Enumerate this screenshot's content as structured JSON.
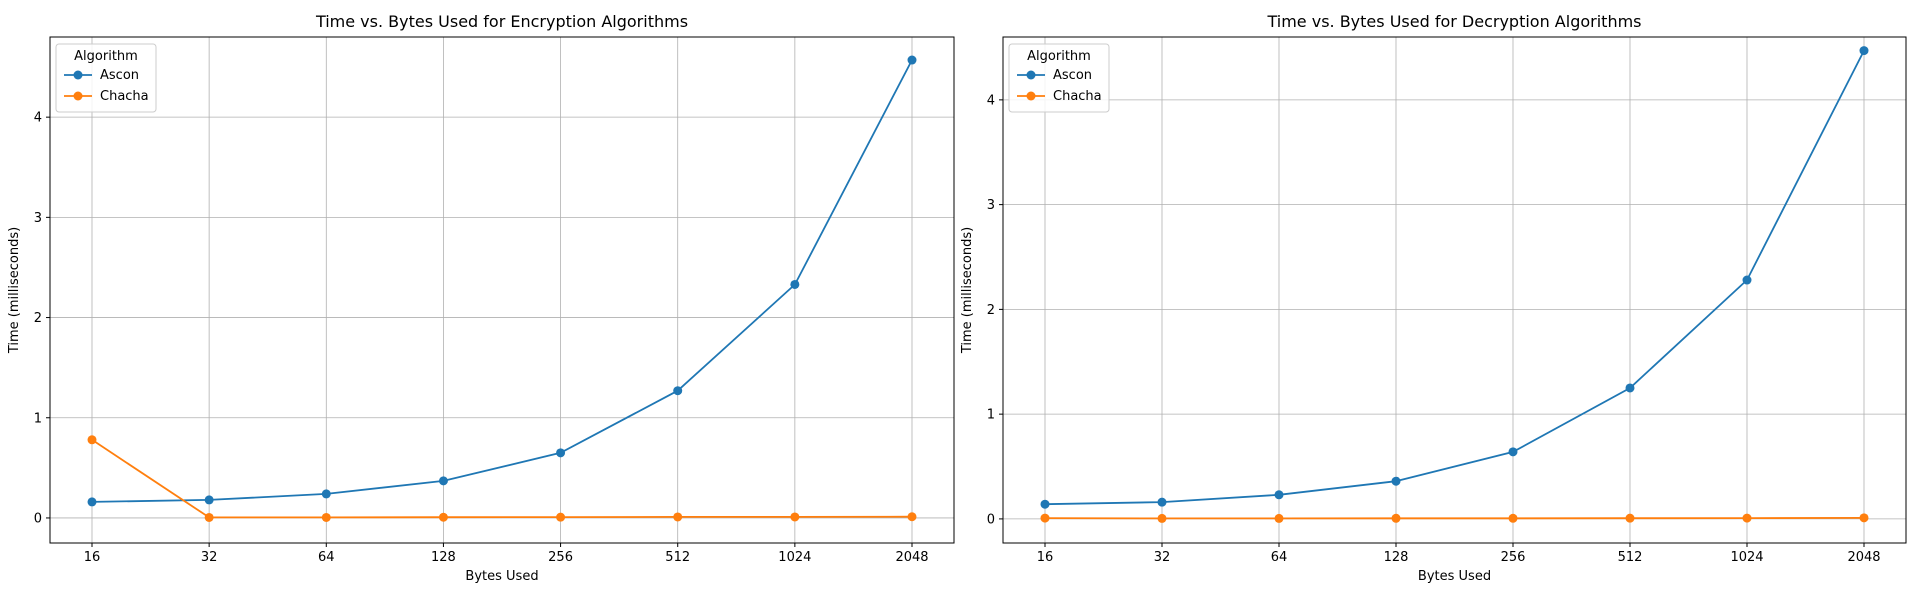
{
  "chart_data": [
    {
      "type": "line",
      "title": "Time vs. Bytes Used for Encryption Algorithms",
      "xlabel": "Bytes Used",
      "ylabel": "Time (milliseconds)",
      "x": [
        16,
        32,
        64,
        128,
        256,
        512,
        1024,
        2048
      ],
      "x_scale": "log2",
      "ylim": [
        -0.25,
        4.8
      ],
      "yticks": [
        0,
        1,
        2,
        3,
        4
      ],
      "grid": true,
      "legend": {
        "title": "Algorithm",
        "placement": "top-left"
      },
      "series": [
        {
          "name": "Ascon",
          "color": "#1f77b4",
          "marker": "circle",
          "values": [
            0.16,
            0.18,
            0.24,
            0.37,
            0.65,
            1.27,
            2.33,
            4.57
          ]
        },
        {
          "name": "Chacha",
          "color": "#ff7f0e",
          "marker": "circle",
          "values": [
            0.78,
            0.005,
            0.005,
            0.007,
            0.008,
            0.01,
            0.01,
            0.012
          ]
        }
      ]
    },
    {
      "type": "line",
      "title": "Time vs. Bytes Used for Decryption Algorithms",
      "xlabel": "Bytes Used",
      "ylabel": "Time (milliseconds)",
      "x": [
        16,
        32,
        64,
        128,
        256,
        512,
        1024,
        2048
      ],
      "x_scale": "log2",
      "ylim": [
        -0.23,
        4.6
      ],
      "yticks": [
        0,
        1,
        2,
        3,
        4
      ],
      "grid": true,
      "legend": {
        "title": "Algorithm",
        "placement": "top-left"
      },
      "series": [
        {
          "name": "Ascon",
          "color": "#1f77b4",
          "marker": "circle",
          "values": [
            0.14,
            0.16,
            0.23,
            0.36,
            0.64,
            1.25,
            2.28,
            4.47
          ]
        },
        {
          "name": "Chacha",
          "color": "#ff7f0e",
          "marker": "circle",
          "values": [
            0.008,
            0.005,
            0.005,
            0.006,
            0.006,
            0.007,
            0.008,
            0.01
          ]
        }
      ]
    }
  ]
}
